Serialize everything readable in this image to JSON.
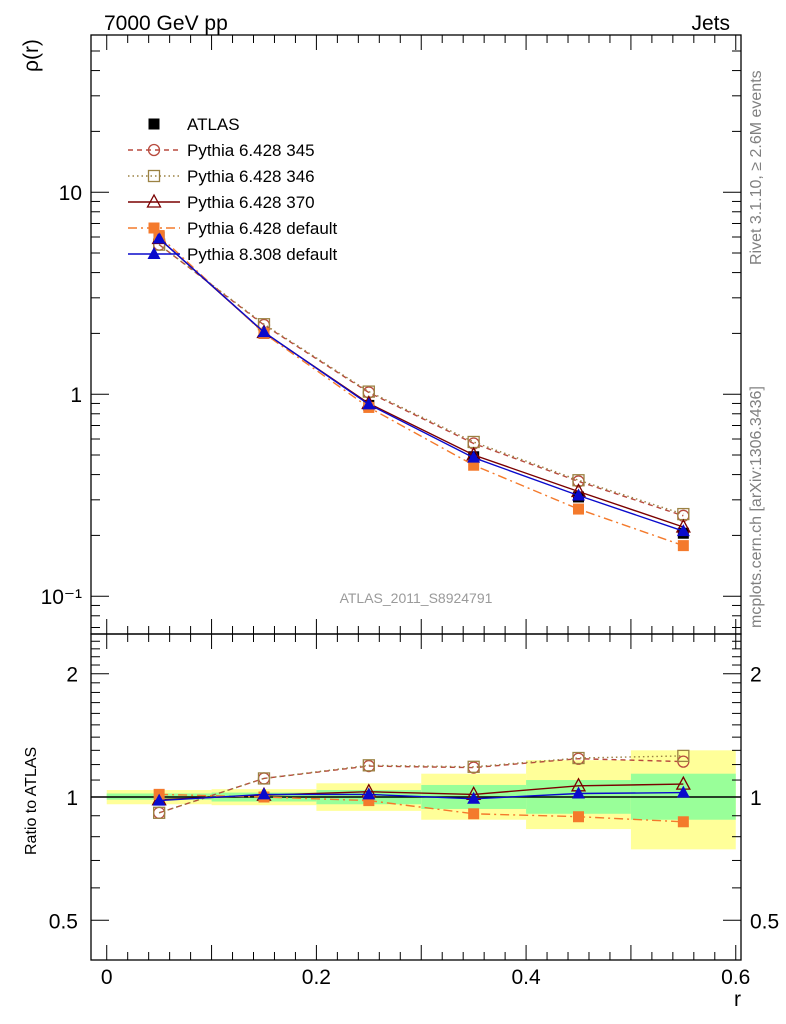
{
  "header": {
    "left": "7000 GeV pp",
    "right": "Jets"
  },
  "side": {
    "top": "Rivet 3.1.10, ≥ 2.6M events",
    "bottom": "mcplots.cern.ch [arXiv:1306.3436]"
  },
  "watermark": "ATLAS_2011_S8924791",
  "chart_data": [
    {
      "type": "line",
      "panel": "main",
      "ylabel": "ρ(r)",
      "yscale": "log",
      "ylim": [
        0.065,
        60
      ],
      "xlim": [
        -0.015,
        0.605
      ],
      "ytick_labels": [
        {
          "v": 10,
          "label": "10"
        },
        {
          "v": 1,
          "label": "1"
        },
        {
          "v": 0.1,
          "label": "10⁻¹"
        }
      ],
      "x": [
        0.05,
        0.15,
        0.25,
        0.35,
        0.45,
        0.55
      ],
      "legend_position": "upper-left",
      "series": [
        {
          "name": "ATLAS",
          "style": "data",
          "color": "#000000",
          "marker": "square-filled",
          "values": [
            6.0,
            2.0,
            0.88,
            0.49,
            0.31,
            0.205
          ]
        },
        {
          "name": "Pythia 6.428 345",
          "color": "#b84a3e",
          "dash": "5,4",
          "marker": "circle-open",
          "values": [
            5.5,
            2.2,
            1.02,
            0.57,
            0.37,
            0.25
          ]
        },
        {
          "name": "Pythia 6.428 346",
          "color": "#9b8243",
          "dash": "1.5,3",
          "marker": "square-open",
          "values": [
            5.5,
            2.22,
            1.03,
            0.58,
            0.375,
            0.255
          ]
        },
        {
          "name": "Pythia 6.428 370",
          "color": "#7a0000",
          "dash": "",
          "marker": "triangle-open",
          "values": [
            5.9,
            2.02,
            0.9,
            0.5,
            0.33,
            0.22
          ]
        },
        {
          "name": "Pythia 6.428 default",
          "color": "#f47a2c",
          "dash": "9,4,2,4",
          "marker": "square-filled",
          "values": [
            6.1,
            2.0,
            0.86,
            0.445,
            0.27,
            0.178
          ]
        },
        {
          "name": "Pythia 8.308 default",
          "color": "#0a0acc",
          "dash": "",
          "marker": "triangle-filled",
          "values": [
            5.9,
            2.03,
            0.89,
            0.485,
            0.315,
            0.21
          ]
        }
      ]
    },
    {
      "type": "line",
      "panel": "ratio",
      "ylabel": "Ratio to ATLAS",
      "xlabel": "r",
      "yscale": "log",
      "ylim": [
        0.4,
        2.5
      ],
      "xlim": [
        -0.015,
        0.605
      ],
      "ytick_labels": [
        {
          "v": 2,
          "label": "2"
        },
        {
          "v": 1,
          "label": "1"
        },
        {
          "v": 0.5,
          "label": "0.5"
        }
      ],
      "xtick_labels": [
        {
          "v": 0,
          "label": "0"
        },
        {
          "v": 0.2,
          "label": "0.2"
        },
        {
          "v": 0.4,
          "label": "0.4"
        },
        {
          "v": 0.6,
          "label": "0.6"
        }
      ],
      "bands": [
        {
          "x0": 0.0,
          "x1": 0.1,
          "inner": [
            0.985,
            1.02
          ],
          "outer": [
            0.96,
            1.04
          ]
        },
        {
          "x0": 0.1,
          "x1": 0.2,
          "inner": [
            0.975,
            1.025
          ],
          "outer": [
            0.955,
            1.045
          ]
        },
        {
          "x0": 0.2,
          "x1": 0.3,
          "inner": [
            0.96,
            1.04
          ],
          "outer": [
            0.925,
            1.08
          ]
        },
        {
          "x0": 0.3,
          "x1": 0.4,
          "inner": [
            0.935,
            1.07
          ],
          "outer": [
            0.88,
            1.14
          ]
        },
        {
          "x0": 0.4,
          "x1": 0.5,
          "inner": [
            0.91,
            1.1
          ],
          "outer": [
            0.835,
            1.23
          ]
        },
        {
          "x0": 0.5,
          "x1": 0.6,
          "inner": [
            0.88,
            1.14
          ],
          "outer": [
            0.745,
            1.3
          ]
        }
      ],
      "x": [
        0.05,
        0.15,
        0.25,
        0.35,
        0.45,
        0.55
      ],
      "series": [
        {
          "name": "Pythia 6.428 345",
          "color": "#b84a3e",
          "dash": "5,4",
          "marker": "circle-open",
          "values": [
            0.915,
            1.11,
            1.19,
            1.18,
            1.24,
            1.22
          ]
        },
        {
          "name": "Pythia 6.428 346",
          "color": "#9b8243",
          "dash": "1.5,3",
          "marker": "square-open",
          "values": [
            0.915,
            1.11,
            1.195,
            1.185,
            1.245,
            1.26
          ]
        },
        {
          "name": "Pythia 6.428 370",
          "color": "#7a0000",
          "dash": "",
          "marker": "triangle-open",
          "values": [
            0.985,
            1.01,
            1.03,
            1.015,
            1.065,
            1.075
          ]
        },
        {
          "name": "Pythia 6.428 default",
          "color": "#f47a2c",
          "dash": "9,4,2,4",
          "marker": "square-filled",
          "values": [
            1.015,
            1.0,
            0.98,
            0.91,
            0.895,
            0.87
          ]
        },
        {
          "name": "Pythia 8.308 default",
          "color": "#0a0acc",
          "dash": "",
          "marker": "triangle-filled",
          "values": [
            0.98,
            1.015,
            1.015,
            0.99,
            1.02,
            1.025
          ]
        }
      ]
    }
  ]
}
